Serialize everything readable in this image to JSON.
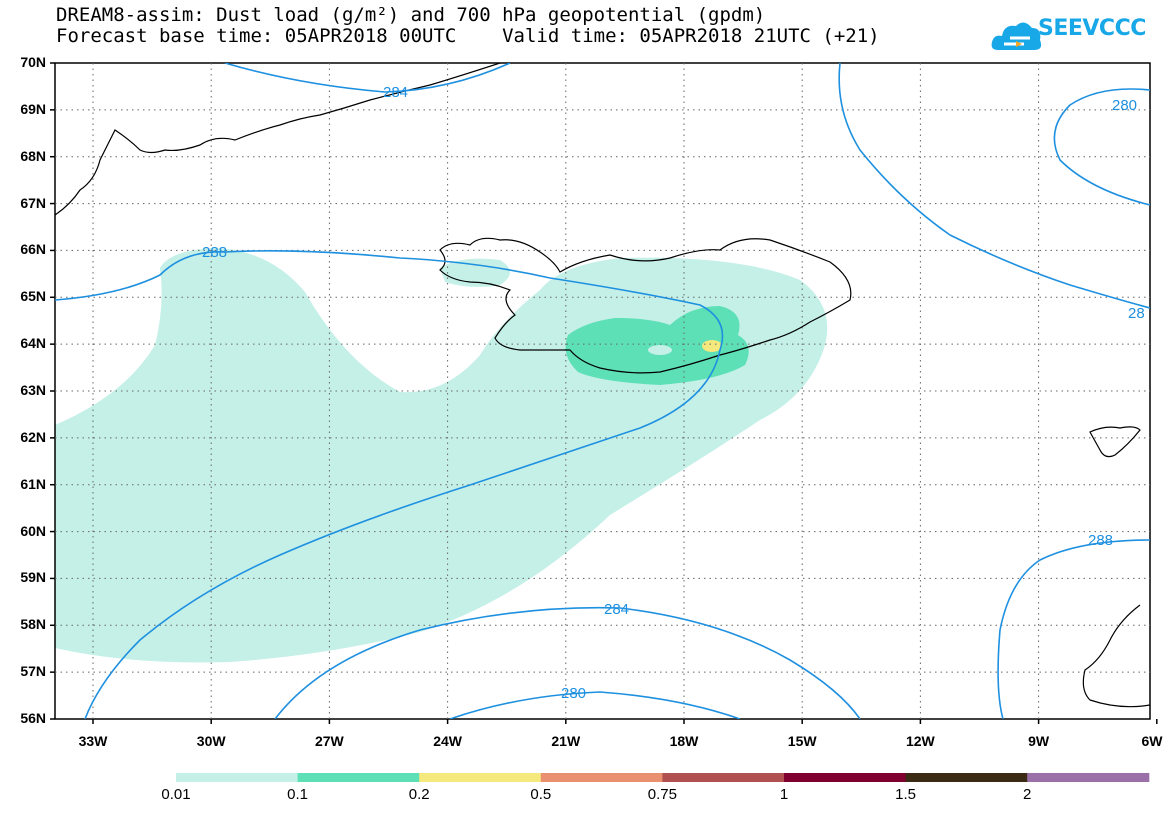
{
  "header": {
    "title_line1": "DREAM8-assim: Dust load (g/m²) and 700 hPa geopotential (gpdm)",
    "title_line2": "Forecast base time: 05APR2018 00UTC    Valid time: 05APR2018 21UTC (+21)"
  },
  "logo": {
    "text": "SEEVCCC",
    "color": "#18a8e8"
  },
  "axes": {
    "lat_labels": [
      "70N",
      "69N",
      "68N",
      "67N",
      "66N",
      "65N",
      "64N",
      "63N",
      "62N",
      "61N",
      "60N",
      "59N",
      "58N",
      "57N",
      "56N"
    ],
    "lon_labels": [
      "33W",
      "30W",
      "27W",
      "24W",
      "21W",
      "18W",
      "15W",
      "12W",
      "9W",
      "6W"
    ]
  },
  "contours": {
    "labels": [
      "284",
      "280",
      "288",
      "28",
      "288",
      "284",
      "280"
    ]
  },
  "colorbar": {
    "labels": [
      "0.01",
      "0.1",
      "0.2",
      "0.5",
      "0.75",
      "1",
      "1.5",
      "2"
    ],
    "colors": [
      "#c4f0e8",
      "#5ee0b6",
      "#f5e87c",
      "#e99070",
      "#b05050",
      "#800030",
      "#3b2a14",
      "#9b70a8"
    ]
  },
  "colors": {
    "contour": "#1e90e0",
    "dust_light": "#c4f0e8",
    "dust_mid": "#5ee0b6",
    "dust_high": "#f5e87c"
  }
}
